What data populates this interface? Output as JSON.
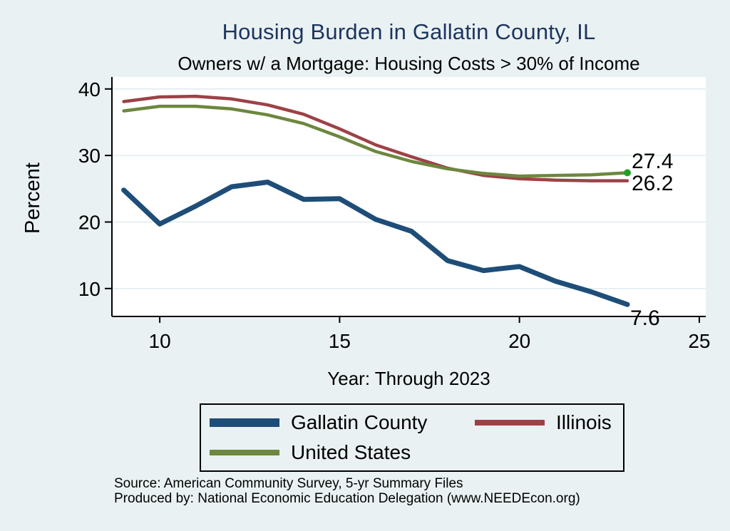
{
  "colors": {
    "page_background": "#eaf1f3",
    "plot_background": "#ffffff",
    "gridline": "#e2edf0",
    "axis": "#000000",
    "title_text": "#1c355e",
    "end_marker": "#21a121"
  },
  "chart_data": {
    "type": "line",
    "title": "Housing Burden in Gallatin County, IL",
    "subtitle": "Owners w/ a Mortgage: Housing Costs > 30% of Income",
    "xlabel": "Year: Through 2023",
    "ylabel": "Percent",
    "xlim": [
      8.67,
      25.18
    ],
    "ylim": [
      5.8,
      41.8
    ],
    "xticks": [
      10,
      15,
      20,
      25
    ],
    "yticks": [
      10,
      20,
      30,
      40
    ],
    "grid": "horizontal",
    "legend_position": "bottom",
    "x": [
      9,
      10,
      11,
      12,
      13,
      14,
      15,
      16,
      17,
      18,
      19,
      20,
      21,
      22,
      23
    ],
    "series": [
      {
        "name": "Gallatin County",
        "color": "#1e4d78",
        "line_width": 7,
        "values": [
          24.8,
          19.7,
          22.4,
          25.3,
          26.0,
          23.4,
          23.5,
          20.4,
          18.6,
          14.2,
          12.7,
          13.3,
          11.1,
          9.5,
          7.6
        ]
      },
      {
        "name": "Illinois",
        "color": "#9c4247",
        "line_width": 4.5,
        "values": [
          38.1,
          38.8,
          38.9,
          38.5,
          37.6,
          36.2,
          34.0,
          31.6,
          29.8,
          28.1,
          27.0,
          26.5,
          26.3,
          26.2,
          26.2
        ]
      },
      {
        "name": "United States",
        "color": "#6d873e",
        "line_width": 4.5,
        "end_marker": true,
        "values": [
          36.7,
          37.4,
          37.4,
          37.0,
          36.1,
          34.8,
          32.8,
          30.6,
          29.1,
          28.0,
          27.3,
          26.9,
          27.0,
          27.1,
          27.4
        ]
      }
    ],
    "end_labels": {
      "united_states": "27.4",
      "illinois": "26.2",
      "gallatin_county": "7.6"
    }
  },
  "footer": {
    "source": "Source: American Community Survey, 5-yr Summary Files",
    "produced_by": "Produced by: National Economic Education Delegation (www.NEEDEcon.org)"
  }
}
